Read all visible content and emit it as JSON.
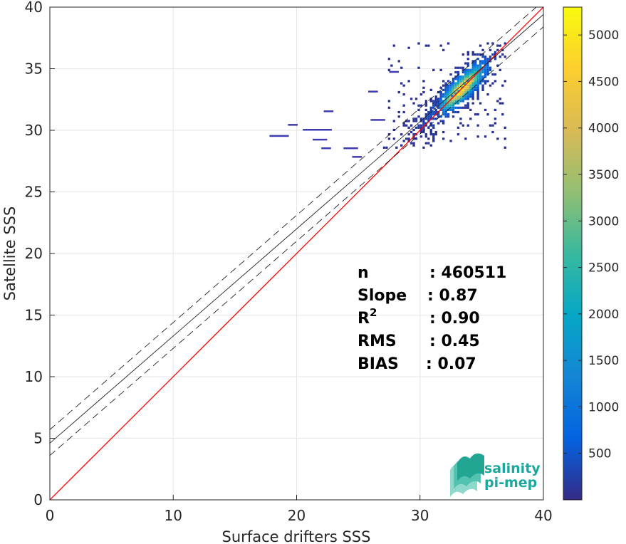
{
  "chart_data": {
    "type": "heatmap",
    "xlabel": "Surface drifters SSS",
    "ylabel": "Satellite SSS",
    "xlim": [
      0,
      40
    ],
    "ylim": [
      0,
      40
    ],
    "xticks": [
      0,
      10,
      20,
      30,
      40
    ],
    "yticks": [
      0,
      5,
      10,
      15,
      20,
      25,
      30,
      35,
      40
    ],
    "grid": true,
    "colorbar": {
      "min": 0,
      "max": 5300,
      "ticks": [
        500,
        1000,
        1500,
        2000,
        2500,
        3000,
        3500,
        4000,
        4500,
        5000
      ],
      "colormap": "parula"
    },
    "density_clusters": [
      {
        "x": 33.3,
        "y": 33.3,
        "count": 5300
      },
      {
        "x": 32.5,
        "y": 32.8,
        "count": 1500
      },
      {
        "x": 34.5,
        "y": 34.3,
        "count": 800
      },
      {
        "x": 35.5,
        "y": 35.2,
        "count": 400
      },
      {
        "x": 31.0,
        "y": 31.5,
        "count": 200
      }
    ],
    "lines": [
      {
        "kind": "identity",
        "color": "#ff0000",
        "style": "solid",
        "slope": 1.0,
        "intercept": 0.0
      },
      {
        "kind": "regression",
        "color": "#222222",
        "style": "solid",
        "slope": 0.87,
        "intercept": 4.6
      },
      {
        "kind": "regression-upper",
        "color": "#222222",
        "style": "dashed",
        "slope": 0.87,
        "intercept": 5.7
      },
      {
        "kind": "regression-lower",
        "color": "#222222",
        "style": "dashed",
        "slope": 0.87,
        "intercept": 3.6
      }
    ],
    "stats": [
      {
        "label": "n",
        "value": ": 460511"
      },
      {
        "label": "Slope",
        "value": ": 0.87"
      },
      {
        "label": "R",
        "sup": "2",
        "value": ": 0.90"
      },
      {
        "label": "RMS",
        "value": ": 0.45"
      },
      {
        "label": "BIAS",
        "value": ": 0.07"
      }
    ]
  },
  "logo": {
    "line1": "salinity",
    "line2": "pi-mep"
  }
}
